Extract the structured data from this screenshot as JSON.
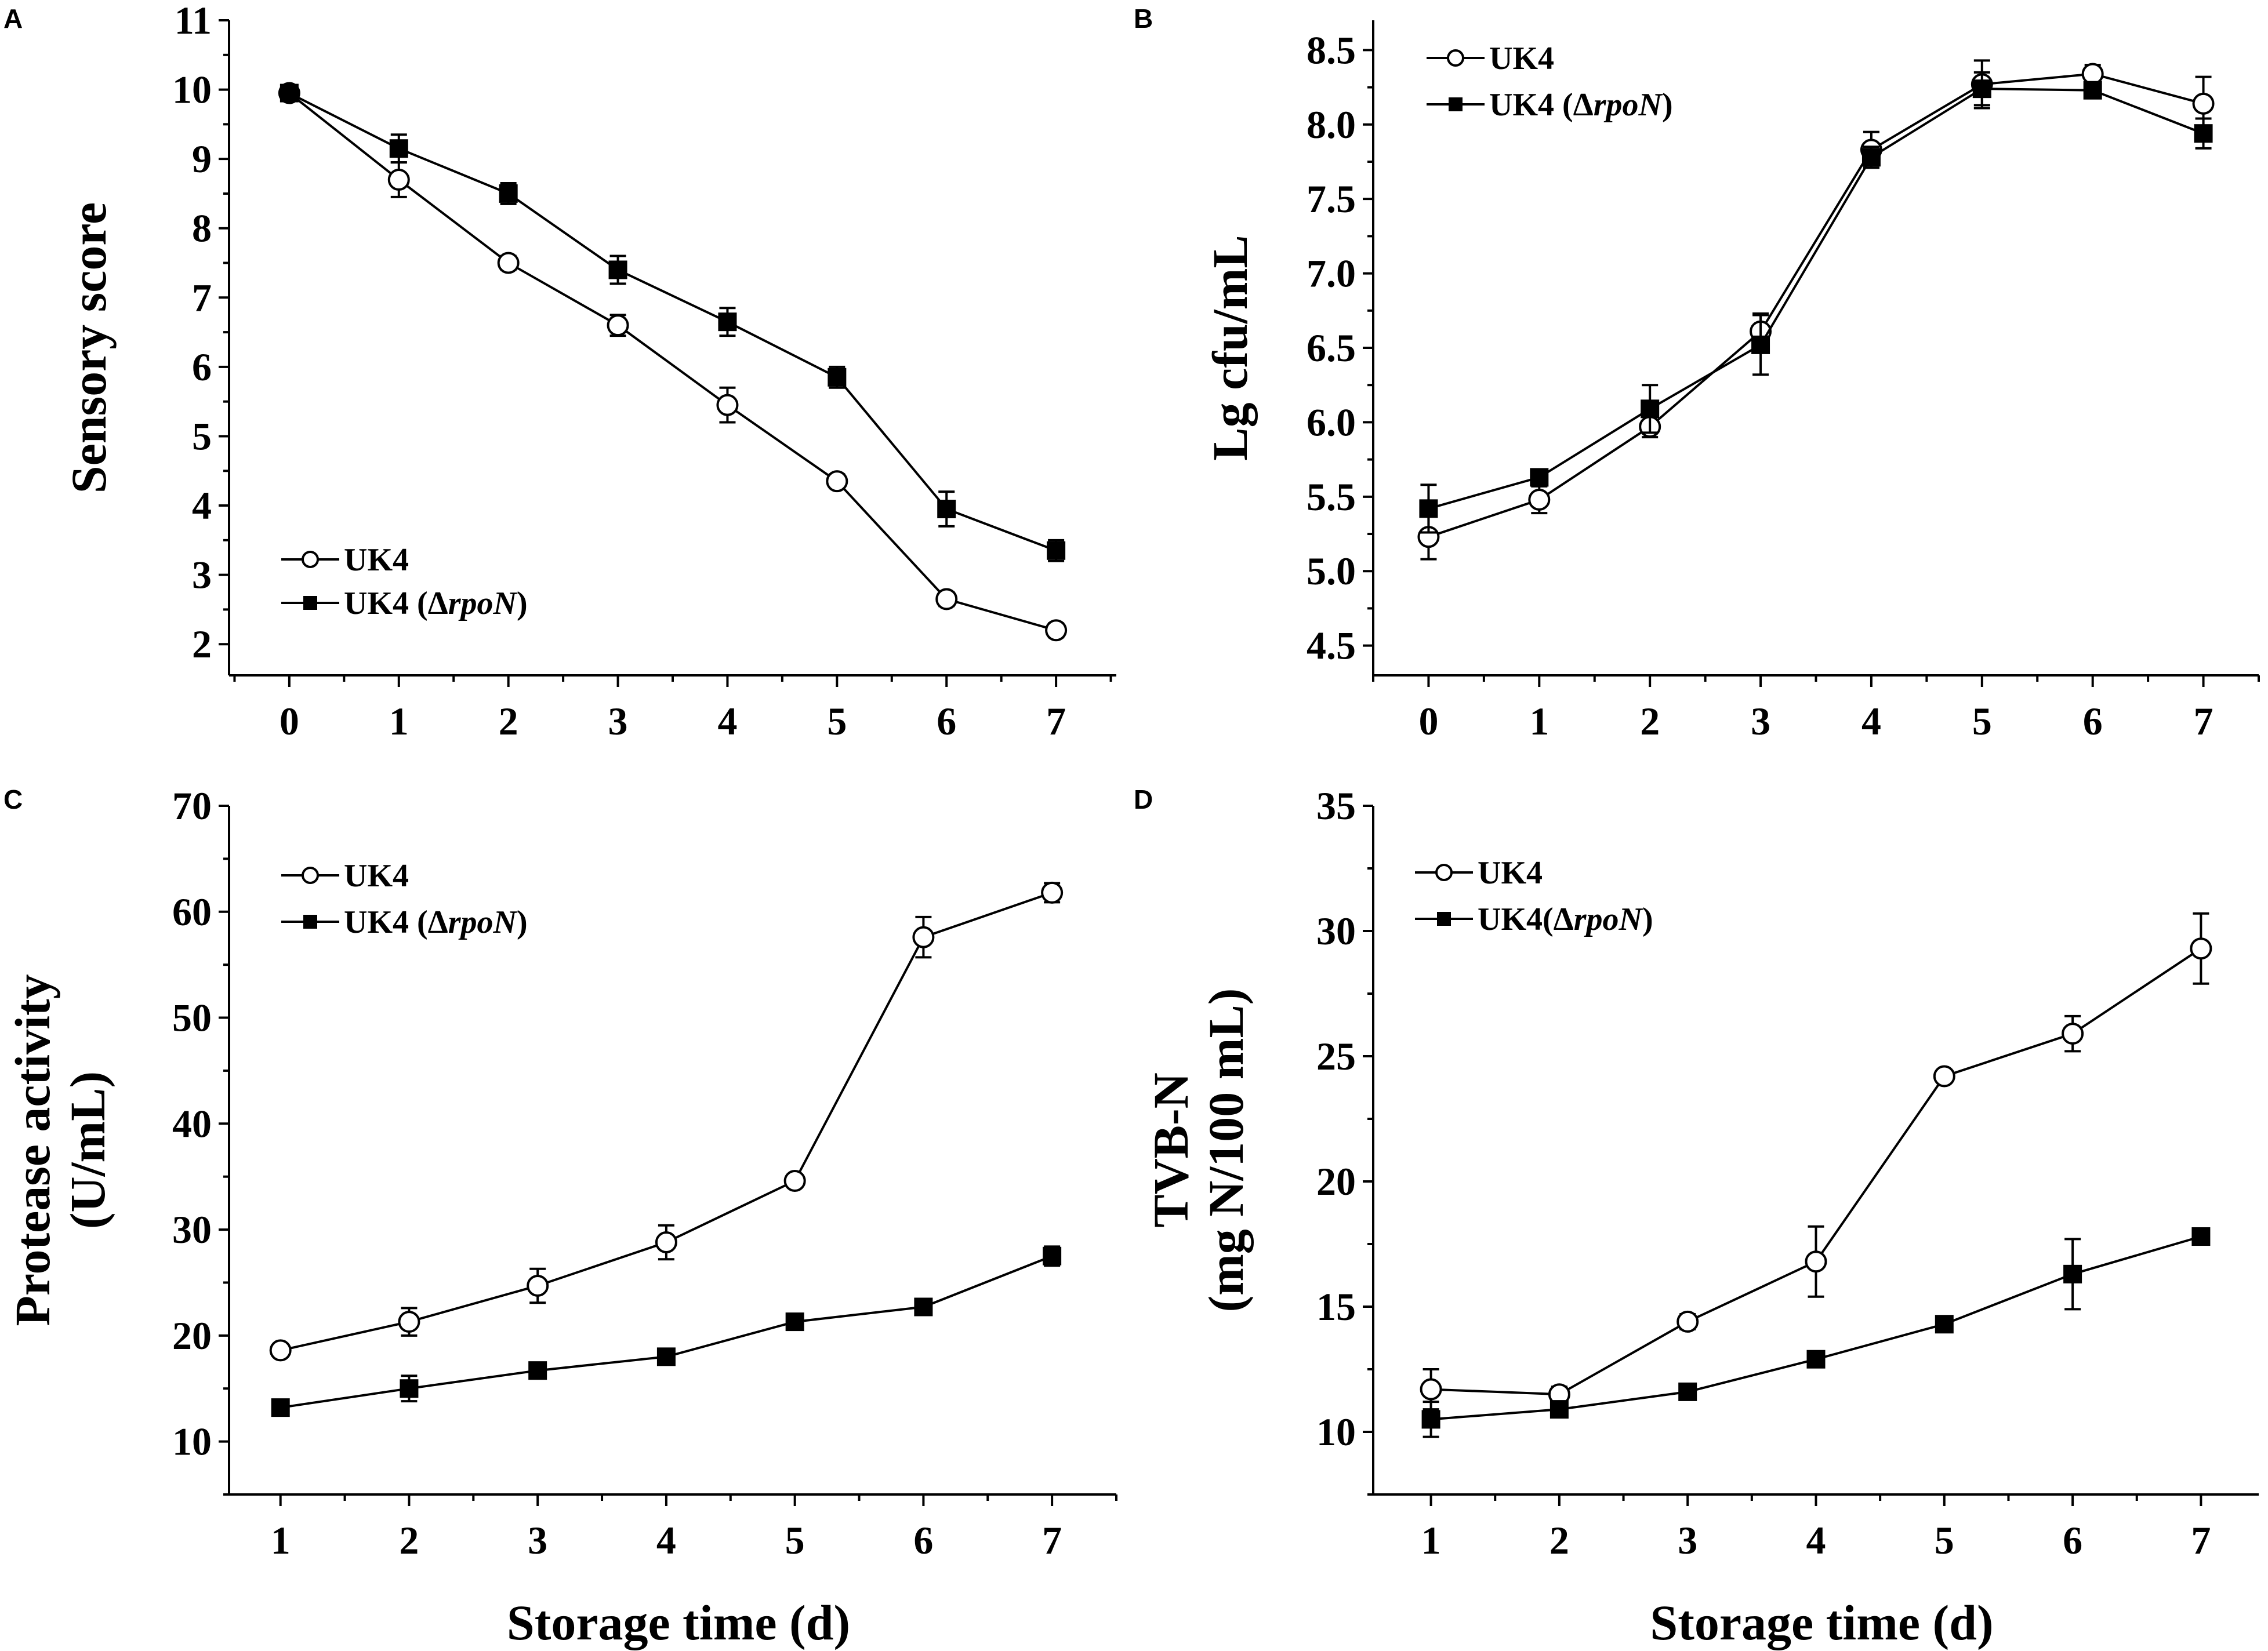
{
  "chart_data": [
    {
      "panel": "A",
      "type": "line",
      "xlabel": "",
      "ylabel": "Sensory score",
      "ylabel_lines": [
        "Sensory score"
      ],
      "xlim": [
        -0.55,
        7.55
      ],
      "ylim": [
        1.55,
        11
      ],
      "xticks": [
        0,
        1,
        2,
        3,
        4,
        5,
        6,
        7
      ],
      "yticks": [
        2,
        3,
        4,
        5,
        6,
        7,
        8,
        9,
        10,
        11
      ],
      "ytick_decimals": 0,
      "legend_position": "bottom-left",
      "series": [
        {
          "name": "UK4",
          "legend_label": {
            "pre": "UK4",
            "italic": "",
            "post": ""
          },
          "marker": "open-circle",
          "x": [
            0,
            1,
            2,
            3,
            4,
            5,
            6,
            7
          ],
          "values": [
            9.95,
            8.7,
            7.5,
            6.6,
            5.45,
            4.35,
            2.65,
            2.2
          ],
          "errors": [
            0.1,
            0.25,
            0.1,
            0.15,
            0.25,
            0.1,
            0.1,
            0.1
          ]
        },
        {
          "name": "UK4 (ΔrpoN)",
          "legend_label": {
            "pre": "UK4 (Δ",
            "italic": "rpoN",
            "post": ")"
          },
          "marker": "filled-square",
          "x": [
            0,
            1,
            2,
            3,
            4,
            5,
            6,
            7
          ],
          "values": [
            9.95,
            9.15,
            8.5,
            7.4,
            6.65,
            5.85,
            3.95,
            3.35
          ],
          "errors": [
            0.1,
            0.2,
            0.15,
            0.2,
            0.2,
            0.15,
            0.25,
            0.15
          ]
        }
      ]
    },
    {
      "panel": "B",
      "type": "line",
      "xlabel": "",
      "ylabel": "Lg cfu/mL",
      "ylabel_lines": [
        "Lg cfu/mL"
      ],
      "xlim": [
        -0.5,
        7.5
      ],
      "ylim": [
        4.3,
        8.7
      ],
      "xticks": [
        0,
        1,
        2,
        3,
        4,
        5,
        6,
        7
      ],
      "yticks": [
        4.5,
        5.0,
        5.5,
        6.0,
        6.5,
        7.0,
        7.5,
        8.0,
        8.5
      ],
      "ytick_decimals": 1,
      "legend_position": "top-left",
      "series": [
        {
          "name": "UK4",
          "legend_label": {
            "pre": "UK4",
            "italic": "",
            "post": ""
          },
          "marker": "open-circle",
          "x": [
            0,
            1,
            2,
            3,
            4,
            5,
            6,
            7
          ],
          "values": [
            5.23,
            5.48,
            5.97,
            6.61,
            7.83,
            8.27,
            8.34,
            8.14
          ],
          "errors": [
            0.15,
            0.09,
            0.07,
            0.12,
            0.12,
            0.16,
            0.06,
            0.18
          ]
        },
        {
          "name": "UK4 (ΔrpoN)",
          "legend_label": {
            "pre": "UK4 (Δ",
            "italic": "rpoN",
            "post": ")"
          },
          "marker": "filled-square",
          "x": [
            0,
            1,
            2,
            3,
            4,
            5,
            6,
            7
          ],
          "values": [
            5.42,
            5.63,
            6.09,
            6.52,
            7.78,
            8.24,
            8.23,
            7.94
          ],
          "errors": [
            0.16,
            0.05,
            0.16,
            0.2,
            0.07,
            0.11,
            0.05,
            0.1
          ]
        }
      ]
    },
    {
      "panel": "C",
      "type": "line",
      "xlabel": "Storage time (d)",
      "ylabel": "Protease activity (U/mL)",
      "ylabel_lines": [
        "Protease activity",
        "(U/mL)"
      ],
      "xlim": [
        0.6,
        7.5
      ],
      "ylim": [
        5,
        70
      ],
      "xticks": [
        1,
        2,
        3,
        4,
        5,
        6,
        7
      ],
      "yticks": [
        10,
        20,
        30,
        40,
        50,
        60,
        70
      ],
      "ytick_decimals": 0,
      "legend_position": "top-left",
      "series": [
        {
          "name": "UK4",
          "legend_label": {
            "pre": "UK4",
            "italic": "",
            "post": ""
          },
          "marker": "open-circle",
          "x": [
            1,
            2,
            3,
            4,
            5,
            6,
            7
          ],
          "values": [
            18.6,
            21.3,
            24.7,
            28.8,
            34.6,
            57.6,
            61.8
          ],
          "errors": [
            0.6,
            1.3,
            1.6,
            1.6,
            0.6,
            1.9,
            0.9
          ]
        },
        {
          "name": "UK4 (ΔrpoN)",
          "legend_label": {
            "pre": "UK4 (Δ",
            "italic": "rpoN",
            "post": ")"
          },
          "marker": "filled-square",
          "x": [
            1,
            2,
            3,
            4,
            5,
            6,
            7
          ],
          "values": [
            13.2,
            15.0,
            16.7,
            18.0,
            21.3,
            22.7,
            27.5
          ],
          "errors": [
            0.4,
            1.2,
            0.6,
            0.5,
            0.5,
            0.5,
            0.9
          ]
        }
      ]
    },
    {
      "panel": "D",
      "type": "line",
      "xlabel": "Storage time (d)",
      "ylabel": "TVB-N (mg N/100 mL)",
      "ylabel_lines": [
        "TVB-N",
        "(mg N/100 mL)"
      ],
      "xlim": [
        0.55,
        7.45
      ],
      "ylim": [
        7.5,
        35
      ],
      "xticks": [
        1,
        2,
        3,
        4,
        5,
        6,
        7
      ],
      "yticks": [
        10,
        15,
        20,
        25,
        30,
        35
      ],
      "ytick_decimals": 0,
      "legend_position": "top-left",
      "series": [
        {
          "name": "UK4",
          "legend_label": {
            "pre": "UK4",
            "italic": "",
            "post": ""
          },
          "marker": "open-circle",
          "x": [
            1,
            2,
            3,
            4,
            5,
            6,
            7
          ],
          "values": [
            11.7,
            11.5,
            14.4,
            16.8,
            24.2,
            25.9,
            29.3
          ],
          "errors": [
            0.8,
            0.3,
            0.3,
            1.4,
            0.2,
            0.7,
            1.4
          ]
        },
        {
          "name": "UK4(ΔrpoN)",
          "legend_label": {
            "pre": "UK4(Δ",
            "italic": "rpoN",
            "post": ")"
          },
          "marker": "filled-square",
          "x": [
            1,
            2,
            3,
            4,
            5,
            6,
            7
          ],
          "values": [
            10.5,
            10.9,
            11.6,
            12.9,
            14.3,
            16.3,
            17.8
          ],
          "errors": [
            0.7,
            0.2,
            0.2,
            0.2,
            0.2,
            1.4,
            0.2
          ]
        }
      ]
    }
  ]
}
